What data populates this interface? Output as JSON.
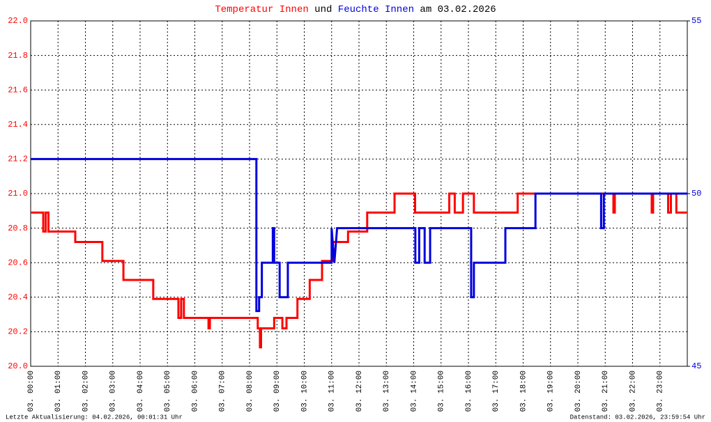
{
  "chart_data": {
    "type": "line",
    "title": [
      "Temperatur Innen",
      "und",
      "Feuchte Innen",
      "am 03.02.2026"
    ],
    "notes": [
      "Letzte Aktualisierung: 04.02.2026, 00:01:31 Uhr",
      "Datenstand: 03.02.2026, 23:59:54 Uhr"
    ],
    "grid": true,
    "xlim": [
      0,
      24
    ],
    "xticks": [
      {
        "value": 0,
        "label": "03. 00:00"
      },
      {
        "value": 1,
        "label": "03. 01:00"
      },
      {
        "value": 2,
        "label": "03. 02:00"
      },
      {
        "value": 3,
        "label": "03. 03:00"
      },
      {
        "value": 4,
        "label": "03. 04:00"
      },
      {
        "value": 5,
        "label": "03. 05:00"
      },
      {
        "value": 6,
        "label": "03. 06:00"
      },
      {
        "value": 7,
        "label": "03. 07:00"
      },
      {
        "value": 8,
        "label": "03. 08:00"
      },
      {
        "value": 9,
        "label": "03. 09:00"
      },
      {
        "value": 10,
        "label": "03. 10:00"
      },
      {
        "value": 11,
        "label": "03. 11:00"
      },
      {
        "value": 12,
        "label": "03. 12:00"
      },
      {
        "value": 13,
        "label": "03. 13:00"
      },
      {
        "value": 14,
        "label": "03. 14:00"
      },
      {
        "value": 15,
        "label": "03. 15:00"
      },
      {
        "value": 16,
        "label": "03. 16:00"
      },
      {
        "value": 17,
        "label": "03. 17:00"
      },
      {
        "value": 18,
        "label": "03. 18:00"
      },
      {
        "value": 19,
        "label": "03. 19:00"
      },
      {
        "value": 20,
        "label": "03. 20:00"
      },
      {
        "value": 21,
        "label": "03. 21:00"
      },
      {
        "value": 22,
        "label": "03. 22:00"
      },
      {
        "value": 23,
        "label": "03. 23:00"
      }
    ],
    "ylim": [
      20,
      22
    ],
    "yticks": [
      {
        "value": 20,
        "label": "20.0"
      },
      {
        "value": 20.2,
        "label": "20.2"
      },
      {
        "value": 20.4,
        "label": "20.4"
      },
      {
        "value": 20.6,
        "label": "20.6"
      },
      {
        "value": 20.8,
        "label": "20.8"
      },
      {
        "value": 21,
        "label": "21.0"
      },
      {
        "value": 21.2,
        "label": "21.2"
      },
      {
        "value": 21.4,
        "label": "21.4"
      },
      {
        "value": 21.6,
        "label": "21.6"
      },
      {
        "value": 21.8,
        "label": "21.8"
      },
      {
        "value": 22,
        "label": "22.0"
      }
    ],
    "y2lim": [
      45,
      55
    ],
    "y2ticks": [
      45,
      50,
      55
    ],
    "series": [
      {
        "color": "#ff0000",
        "x": [
          0,
          0.46,
          0.46,
          0.55,
          0.55,
          0.65,
          0.65,
          1.63,
          1.63,
          2.62,
          2.62,
          3.39,
          3.39,
          4.48,
          4.48,
          5.4,
          5.4,
          5.5,
          5.5,
          5.6,
          5.6,
          6.5,
          6.5,
          6.55,
          6.55,
          8.3,
          8.3,
          8.38,
          8.38,
          8.42,
          8.42,
          8.9,
          8.9,
          9.2,
          9.2,
          9.35,
          9.35,
          9.75,
          9.75,
          10.2,
          10.2,
          10.65,
          10.65,
          11.05,
          11.05,
          11.6,
          11.6,
          12.3,
          12.3,
          13.3,
          13.3,
          14.05,
          14.05,
          15.3,
          15.3,
          15.5,
          15.5,
          15.8,
          15.8,
          16.2,
          16.2,
          17.8,
          17.8,
          21.3,
          21.3,
          21.35,
          21.35,
          22.7,
          22.7,
          22.75,
          22.75,
          23.3,
          23.3,
          23.4,
          23.4,
          23.6,
          23.6,
          24
        ],
        "values": [
          20.89,
          20.89,
          20.78,
          20.78,
          20.89,
          20.89,
          20.78,
          20.78,
          20.72,
          20.72,
          20.61,
          20.61,
          20.5,
          20.5,
          20.39,
          20.39,
          20.28,
          20.28,
          20.39,
          20.39,
          20.28,
          20.28,
          20.22,
          20.22,
          20.28,
          20.28,
          20.22,
          20.22,
          20.11,
          20.11,
          20.22,
          20.22,
          20.28,
          20.28,
          20.22,
          20.22,
          20.28,
          20.28,
          20.39,
          20.39,
          20.5,
          20.5,
          20.61,
          20.61,
          20.72,
          20.72,
          20.78,
          20.78,
          20.89,
          20.89,
          21.0,
          21.0,
          20.89,
          20.89,
          21.0,
          21.0,
          20.89,
          20.89,
          21.0,
          21.0,
          20.89,
          20.89,
          21.0,
          21.0,
          20.89,
          20.89,
          21.0,
          21.0,
          20.89,
          20.89,
          21.0,
          21.0,
          20.89,
          20.89,
          21.0,
          21.0,
          20.89,
          20.89
        ]
      },
      {
        "color": "#0000dd",
        "axis": "y2",
        "x": [
          0,
          8.25,
          8.25,
          8.35,
          8.35,
          8.45,
          8.45,
          8.85,
          8.85,
          8.9,
          8.9,
          9.1,
          9.1,
          9.4,
          9.4,
          11.0,
          11.0,
          11.1,
          11.2,
          14.06,
          14.06,
          14.2,
          14.2,
          14.4,
          14.4,
          14.6,
          14.6,
          16.1,
          16.1,
          16.2,
          16.2,
          17.35,
          17.35,
          18.45,
          18.45,
          20.85,
          20.85,
          20.95,
          20.95,
          24
        ],
        "values": [
          51,
          51,
          46.6,
          46.6,
          47,
          47,
          48,
          48,
          49,
          49,
          48,
          48,
          47,
          47,
          48,
          48,
          49,
          48,
          49,
          49,
          48,
          48,
          49,
          49,
          48,
          48,
          49,
          49,
          47,
          47,
          48,
          48,
          49,
          49,
          50,
          50,
          49,
          49,
          50,
          50
        ]
      }
    ]
  }
}
